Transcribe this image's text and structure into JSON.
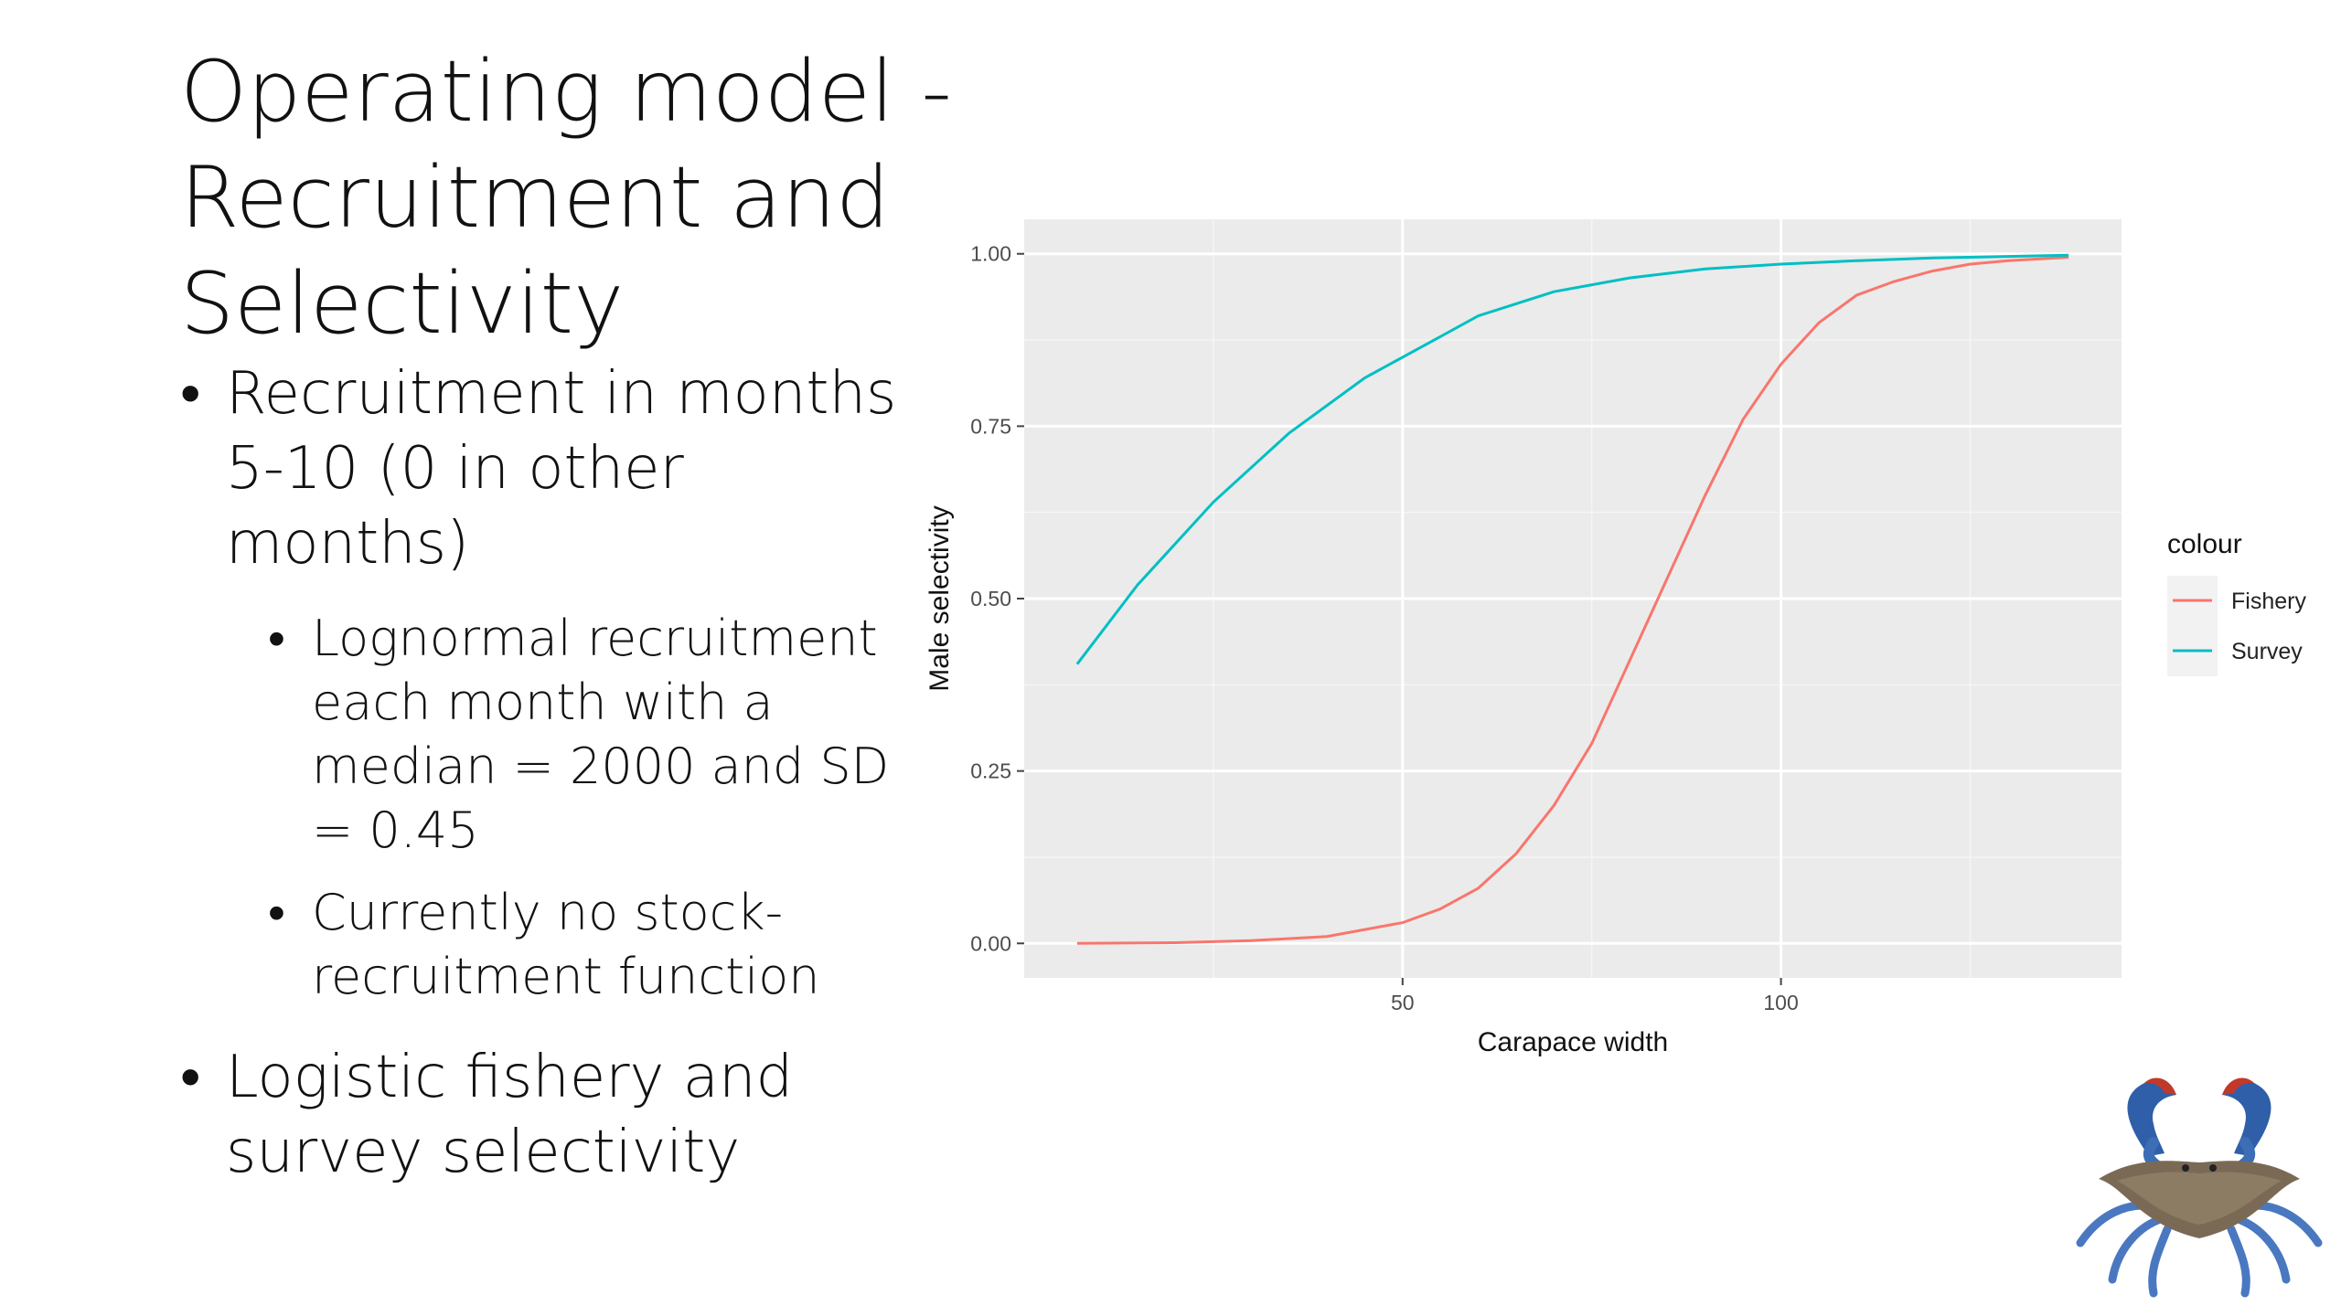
{
  "slide": {
    "title": "Operating model - Recruitment and Selectivity",
    "bullets": [
      {
        "text": "Recruitment in months 5-10 (0 in other months)",
        "sub": [
          {
            "text": "Lognormal recruitment each month with a median = 2000 and SD = 0.45"
          },
          {
            "text": "Currently no stock-recruitment function"
          }
        ]
      },
      {
        "text": "Logistic fishery and survey selectivity",
        "sub": []
      }
    ]
  },
  "chart_data": {
    "type": "line",
    "xlabel": "Carapace width",
    "ylabel": "Male selectivity",
    "xlim": [
      0,
      145
    ],
    "ylim": [
      -0.05,
      1.05
    ],
    "x_ticks": [
      {
        "value": 50,
        "label": "50"
      },
      {
        "value": 100,
        "label": "100"
      }
    ],
    "y_ticks": [
      {
        "value": 0,
        "label": "0.00"
      },
      {
        "value": 0.25,
        "label": "0.25"
      },
      {
        "value": 0.5,
        "label": "0.50"
      },
      {
        "value": 0.75,
        "label": "0.75"
      },
      {
        "value": 1,
        "label": "1.00"
      }
    ],
    "grid": true,
    "legend": {
      "title": "colour",
      "position": "right"
    },
    "series": [
      {
        "name": "Fishery",
        "color": "#F8766D",
        "x": [
          7,
          20,
          30,
          40,
          50,
          55,
          60,
          65,
          70,
          75,
          80,
          85,
          90,
          95,
          100,
          105,
          110,
          115,
          120,
          125,
          130,
          138
        ],
        "y": [
          0.0,
          0.001,
          0.004,
          0.01,
          0.03,
          0.05,
          0.08,
          0.13,
          0.2,
          0.29,
          0.41,
          0.53,
          0.65,
          0.76,
          0.84,
          0.9,
          0.94,
          0.96,
          0.975,
          0.985,
          0.99,
          0.995
        ]
      },
      {
        "name": "Survey",
        "color": "#00BFC4",
        "x": [
          7,
          15,
          25,
          35,
          45,
          50,
          55,
          60,
          70,
          80,
          90,
          100,
          110,
          120,
          138
        ],
        "y": [
          0.405,
          0.52,
          0.64,
          0.74,
          0.82,
          0.85,
          0.88,
          0.91,
          0.945,
          0.965,
          0.978,
          0.985,
          0.99,
          0.994,
          0.998
        ]
      }
    ]
  },
  "logo": {
    "icon": "blue-crab-icon"
  }
}
